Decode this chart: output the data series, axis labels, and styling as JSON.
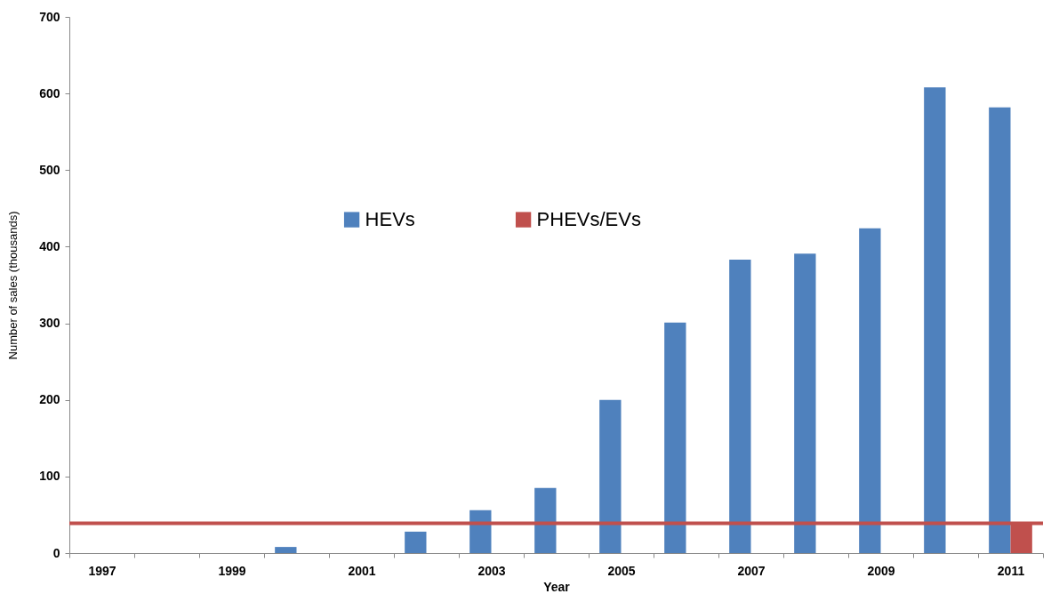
{
  "chart_data": {
    "type": "bar",
    "xlabel": "Year",
    "ylabel": "Number of sales (thousands)",
    "categories": [
      "1997",
      null,
      "1999",
      null,
      "2001",
      null,
      "2003",
      null,
      "2005",
      null,
      "2007",
      null,
      "2009",
      null,
      "2011"
    ],
    "series": [
      {
        "name": "HEVs",
        "color": "#4f81bd",
        "values": [
          null,
          null,
          null,
          8,
          null,
          28,
          56,
          85,
          200,
          301,
          383,
          391,
          424,
          608,
          582
        ]
      },
      {
        "name": "PHEVs/EVs",
        "color": "#c0504d",
        "values": [
          null,
          null,
          null,
          null,
          null,
          null,
          null,
          null,
          null,
          null,
          null,
          null,
          null,
          null,
          38
        ]
      }
    ],
    "ylim": [
      0,
      700
    ],
    "yticks": [
      0,
      100,
      200,
      300,
      400,
      500,
      600,
      700
    ],
    "ref_lines": [
      {
        "axis": "y",
        "value": 39,
        "color": "#c0504d"
      }
    ],
    "legend": "top",
    "grid": false
  }
}
